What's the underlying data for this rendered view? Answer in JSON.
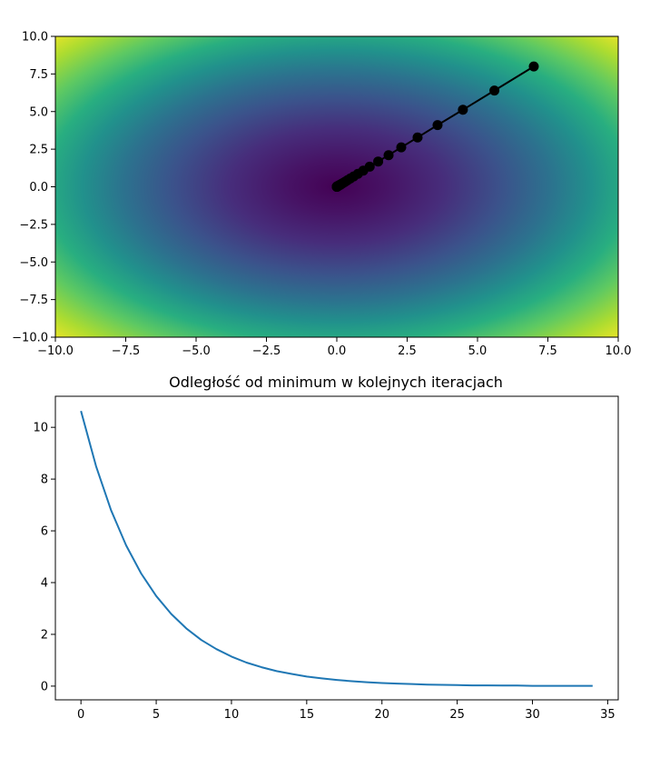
{
  "chart_data": [
    {
      "type": "heatmap",
      "title": "",
      "xlabel": "",
      "ylabel": "",
      "xlim": [
        -10,
        10
      ],
      "ylim": [
        -10,
        10
      ],
      "colormap": "viridis",
      "x_ticks": [
        "−10.0",
        "−7.5",
        "−5.0",
        "−2.5",
        "0.0",
        "2.5",
        "5.0",
        "7.5",
        "10.0"
      ],
      "y_ticks": [
        "10.0",
        "7.5",
        "5.0",
        "2.5",
        "0.0",
        "−2.5",
        "−5.0",
        "−7.5",
        "−10.0"
      ],
      "x_tick_values": [
        -10,
        -7.5,
        -5,
        -2.5,
        0,
        2.5,
        5,
        7.5,
        10
      ],
      "y_tick_values": [
        10,
        7.5,
        5,
        2.5,
        0,
        -2.5,
        -5,
        -7.5,
        -10
      ],
      "path": {
        "color": "#000000",
        "x": [
          7.0,
          5.6,
          4.48,
          3.58,
          2.87,
          2.29,
          1.84,
          1.47,
          1.17,
          0.94,
          0.75,
          0.6,
          0.48,
          0.38,
          0.31,
          0.25,
          0.2,
          0.16,
          0.13,
          0.1,
          0.08,
          0.06,
          0.05,
          0.04,
          0.03,
          0.02,
          0.02,
          0.01,
          0.01,
          0.01,
          0.01,
          0.0,
          0.0,
          0.0,
          0.0
        ],
        "y": [
          8.0,
          6.4,
          5.12,
          4.1,
          3.28,
          2.62,
          2.1,
          1.68,
          1.34,
          1.07,
          0.86,
          0.69,
          0.55,
          0.44,
          0.35,
          0.28,
          0.23,
          0.18,
          0.14,
          0.12,
          0.09,
          0.07,
          0.06,
          0.05,
          0.04,
          0.03,
          0.02,
          0.02,
          0.01,
          0.01,
          0.01,
          0.01,
          0.01,
          0.0,
          0.0
        ]
      }
    },
    {
      "type": "line",
      "title": "Odległość od minimum w kolejnych iteracjach",
      "xlabel": "",
      "ylabel": "",
      "xlim": [
        -1.7,
        35.7
      ],
      "ylim": [
        -0.53,
        11.2
      ],
      "x_ticks": [
        0,
        5,
        10,
        15,
        20,
        25,
        30,
        35
      ],
      "y_ticks": [
        0,
        2,
        4,
        6,
        8,
        10
      ],
      "series": [
        {
          "color": "#1f77b4",
          "x": [
            0,
            1,
            2,
            3,
            4,
            5,
            6,
            7,
            8,
            9,
            10,
            11,
            12,
            13,
            14,
            15,
            16,
            17,
            18,
            19,
            20,
            21,
            22,
            23,
            24,
            25,
            26,
            27,
            28,
            29,
            30,
            31,
            32,
            33,
            34
          ],
          "values": [
            10.63,
            8.5,
            6.8,
            5.44,
            4.35,
            3.48,
            2.79,
            2.23,
            1.78,
            1.43,
            1.14,
            0.91,
            0.73,
            0.58,
            0.47,
            0.37,
            0.3,
            0.24,
            0.19,
            0.15,
            0.12,
            0.1,
            0.08,
            0.06,
            0.05,
            0.04,
            0.03,
            0.03,
            0.02,
            0.02,
            0.01,
            0.01,
            0.01,
            0.01,
            0.01
          ]
        }
      ]
    }
  ]
}
